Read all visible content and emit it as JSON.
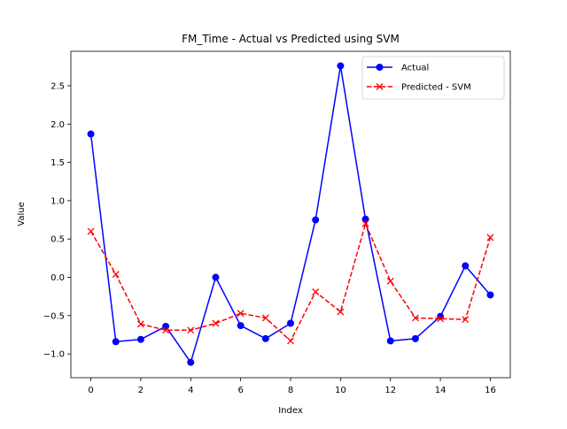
{
  "chart_data": {
    "type": "line",
    "title": "FM_Time - Actual vs Predicted using SVM",
    "xlabel": "Index",
    "ylabel": "Value",
    "xlim": [
      -0.8,
      16.8
    ],
    "ylim": [
      -1.31,
      2.95
    ],
    "x": [
      0,
      1,
      2,
      3,
      4,
      5,
      6,
      7,
      8,
      9,
      10,
      11,
      12,
      13,
      14,
      15,
      16
    ],
    "x_ticks": [
      0,
      2,
      4,
      6,
      8,
      10,
      12,
      14,
      16
    ],
    "x_tick_labels": [
      "0",
      "2",
      "4",
      "6",
      "8",
      "10",
      "12",
      "14",
      "16"
    ],
    "y_ticks": [
      -1.0,
      -0.5,
      0.0,
      0.5,
      1.0,
      1.5,
      2.0,
      2.5
    ],
    "y_tick_labels": [
      "−1.0",
      "−0.5",
      "0.0",
      "0.5",
      "1.0",
      "1.5",
      "2.0",
      "2.5"
    ],
    "grid": false,
    "legend_position": "top-right",
    "series": [
      {
        "name": "Actual",
        "color": "#0000ff",
        "line_style": "solid",
        "marker": "circle",
        "values": [
          1.87,
          -0.84,
          -0.81,
          -0.64,
          -1.11,
          0.0,
          -0.63,
          -0.8,
          -0.6,
          0.75,
          2.76,
          0.76,
          -0.83,
          -0.8,
          -0.51,
          0.15,
          -0.23
        ]
      },
      {
        "name": "Predicted - SVM",
        "color": "#ff0000",
        "line_style": "dashed",
        "marker": "x",
        "values": [
          0.6,
          0.04,
          -0.61,
          -0.69,
          -0.69,
          -0.6,
          -0.47,
          -0.53,
          -0.83,
          -0.19,
          -0.45,
          0.7,
          -0.05,
          -0.53,
          -0.54,
          -0.55,
          0.52
        ]
      }
    ]
  }
}
